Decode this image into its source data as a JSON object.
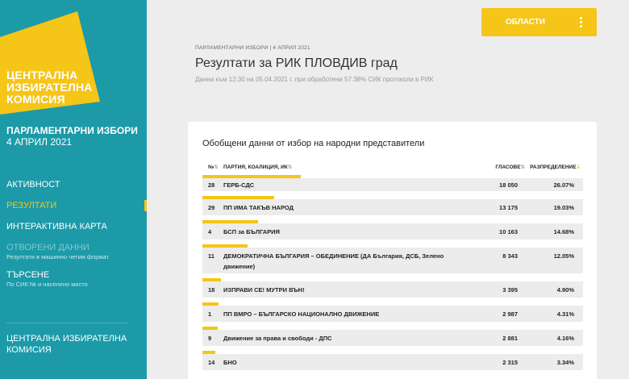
{
  "sidebar": {
    "logo_lines": [
      "ЦЕНТРАЛНА",
      "ИЗБИРАТЕЛНА",
      "КОМИСИЯ"
    ],
    "election_title": "ПАРЛАМЕНТАРНИ ИЗБОРИ",
    "election_date": "4 АПРИЛ 2021",
    "nav": {
      "activity": "АКТИВНОСТ",
      "results": "РЕЗУЛТАТИ",
      "map": "ИНТЕРАКТИВНА КАРТА",
      "open_data": "ОТВОРЕНИ ДАННИ",
      "open_data_sub": "Резултати в машинно четим формат",
      "search": "ТЪРСЕНЕ",
      "search_sub": "По СИК № и населено място"
    },
    "footer_link": "ЦЕНТРАЛНА ИЗБИРАТЕЛНА КОМИСИЯ"
  },
  "header": {
    "breadcrumb": "ПАРЛАМЕНТАРНИ ИЗБОРИ | 4 АПРИЛ 2021",
    "title": "Резултати за РИК ПЛОВДИВ град",
    "subtitle": "Данни към 12:30 на 05.04.2021 г. при обработени 57.38% СИК протоколи в РИК",
    "regions_button": "ОБЛАСТИ"
  },
  "card": {
    "title": "Обобщени данни от избор на народни представители",
    "columns": {
      "num": "№",
      "party": "ПАРТИЯ, КОАЛИЦИЯ, ИК",
      "votes": "ГЛАСОВЕ",
      "share": "РАЗПРЕДЕЛЕНИЕ"
    },
    "sort_glyph": "⇅",
    "sort_active_glyph": "⇣"
  },
  "rows": [
    {
      "num": "28",
      "name": "ГЕРБ-СДС",
      "votes": "18 050",
      "pct": "26.07%",
      "share": 26.07
    },
    {
      "num": "29",
      "name": "ПП ИМА ТАКЪВ НАРОД",
      "votes": "13 175",
      "pct": "19.03%",
      "share": 19.03
    },
    {
      "num": "4",
      "name": "БСП за БЪЛГАРИЯ",
      "votes": "10 163",
      "pct": "14.68%",
      "share": 14.68
    },
    {
      "num": "11",
      "name": "ДЕМОКРАТИЧНА БЪЛГАРИЯ – ОБЕДИНЕНИЕ (ДА България, ДСБ, Зелено движение)",
      "votes": "8 343",
      "pct": "12.05%",
      "share": 12.05
    },
    {
      "num": "18",
      "name": "ИЗПРАВИ СЕ! МУТРИ ВЪН!",
      "votes": "3 395",
      "pct": "4.90%",
      "share": 4.9
    },
    {
      "num": "1",
      "name": "ПП ВМРО – БЪЛГАРСКО НАЦИОНАЛНО ДВИЖЕНИЕ",
      "votes": "2 987",
      "pct": "4.31%",
      "share": 4.31
    },
    {
      "num": "9",
      "name": "Движение за права и свободи - ДПС",
      "votes": "2 881",
      "pct": "4.16%",
      "share": 4.16
    },
    {
      "num": "14",
      "name": "БНО",
      "votes": "2 315",
      "pct": "3.34%",
      "share": 3.34
    }
  ],
  "colors": {
    "sidebar": "#1c9aa8",
    "accent": "#f5c518",
    "row_bg": "#ececec"
  }
}
